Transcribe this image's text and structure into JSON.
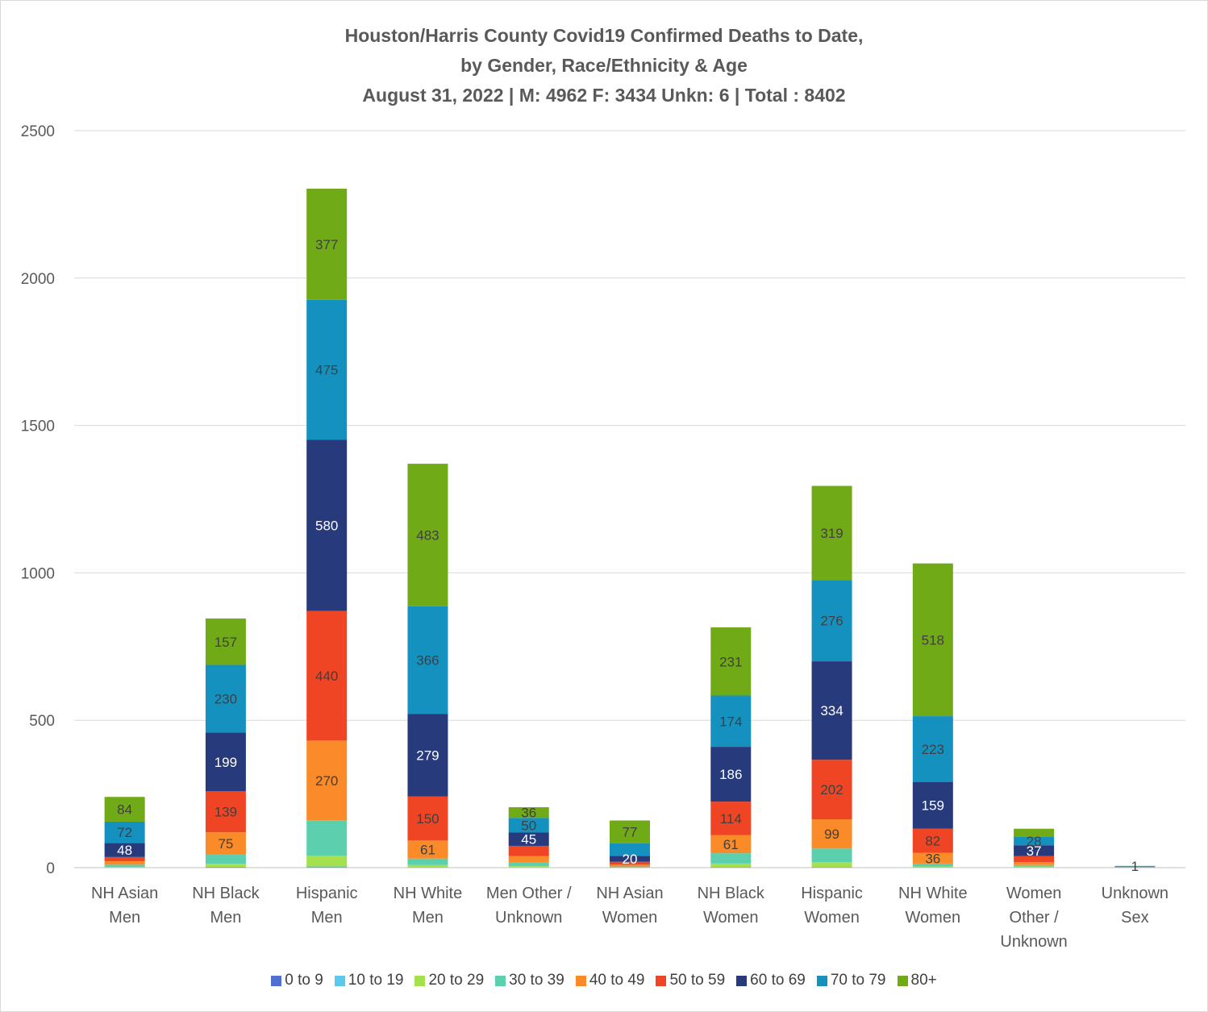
{
  "chart_data": {
    "type": "bar",
    "stacked": true,
    "title": "Houston/Harris County Covid19 Confirmed Deaths to Date,",
    "subtitle": "by Gender, Race/Ethnicity & Age",
    "subtitle2": "August 31, 2022 | M: 4962 F: 3434 Unkn: 6 | Total : 8402",
    "ylim": [
      0,
      2500
    ],
    "yticks": [
      "0",
      "500",
      "1000",
      "1500",
      "2000",
      "2500"
    ],
    "ytick_values": [
      0,
      500,
      1000,
      1500,
      2000,
      2500
    ],
    "grid": true,
    "legend_position": "bottom",
    "categories": [
      [
        "NH Asian",
        "Men"
      ],
      [
        "NH Black",
        "Men"
      ],
      [
        "Hispanic",
        "Men"
      ],
      [
        "NH White",
        "Men"
      ],
      [
        "Men Other /",
        "Unknown"
      ],
      [
        "NH Asian",
        "Women"
      ],
      [
        "NH Black",
        "Women"
      ],
      [
        "Hispanic",
        "Women"
      ],
      [
        "NH White",
        "Women"
      ],
      [
        "Women",
        "Other /",
        "Unknown"
      ],
      [
        "Unknown",
        "Sex"
      ]
    ],
    "series": [
      {
        "name": "0 to 9",
        "color": "#4f6fd1",
        "values": [
          0,
          1,
          1,
          0,
          0,
          0,
          1,
          1,
          0,
          0,
          0
        ]
      },
      {
        "name": "10 to 19",
        "color": "#5bc8ee",
        "values": [
          0,
          2,
          3,
          1,
          0,
          0,
          1,
          1,
          0,
          0,
          0
        ]
      },
      {
        "name": "20 to 29",
        "color": "#a5e14e",
        "values": [
          2,
          10,
          37,
          8,
          5,
          1,
          12,
          17,
          4,
          4,
          0
        ]
      },
      {
        "name": "30 to 39",
        "color": "#5bcfae",
        "values": [
          8,
          32,
          120,
          22,
          12,
          3,
          35,
          46,
          10,
          5,
          1
        ]
      },
      {
        "name": "40 to 49",
        "color": "#fb8a28",
        "values": [
          12,
          75,
          270,
          61,
          22,
          6,
          61,
          99,
          36,
          10,
          1
        ]
      },
      {
        "name": "50 to 59",
        "color": "#ef4525",
        "values": [
          14,
          139,
          440,
          150,
          35,
          10,
          114,
          202,
          82,
          20,
          1
        ]
      },
      {
        "name": "60 to 69",
        "color": "#263a7c",
        "values": [
          48,
          199,
          580,
          279,
          45,
          20,
          186,
          334,
          159,
          37,
          1
        ]
      },
      {
        "name": "70 to 79",
        "color": "#1591c0",
        "values": [
          72,
          230,
          475,
          366,
          50,
          43,
          174,
          276,
          223,
          28,
          1
        ]
      },
      {
        "name": "80+",
        "color": "#70aa16",
        "values": [
          84,
          157,
          377,
          483,
          36,
          77,
          231,
          319,
          518,
          28,
          1
        ]
      }
    ],
    "data_labels": [
      [
        null,
        null,
        null,
        null,
        null,
        null,
        null,
        null,
        null,
        null,
        null
      ],
      [
        null,
        null,
        null,
        null,
        null,
        null,
        null,
        null,
        null,
        null,
        null
      ],
      [
        null,
        null,
        null,
        null,
        null,
        null,
        null,
        null,
        null,
        null,
        null
      ],
      [
        null,
        null,
        null,
        null,
        null,
        null,
        null,
        null,
        null,
        null,
        null
      ],
      [
        null,
        "75",
        "270",
        "61",
        null,
        null,
        "61",
        "99",
        "36",
        null,
        null
      ],
      [
        null,
        "139",
        "440",
        "150",
        null,
        null,
        "114",
        "202",
        "82",
        null,
        null
      ],
      [
        "48",
        "199",
        "580",
        "279",
        "45",
        "20",
        "186",
        "334",
        "159",
        "37",
        null
      ],
      [
        "72",
        "230",
        "475",
        "366",
        "50",
        null,
        "174",
        "276",
        "223",
        "28",
        null
      ],
      [
        "84",
        "157",
        "377",
        "483",
        "36",
        "77",
        "231",
        "319",
        "518",
        null,
        "1"
      ]
    ]
  }
}
